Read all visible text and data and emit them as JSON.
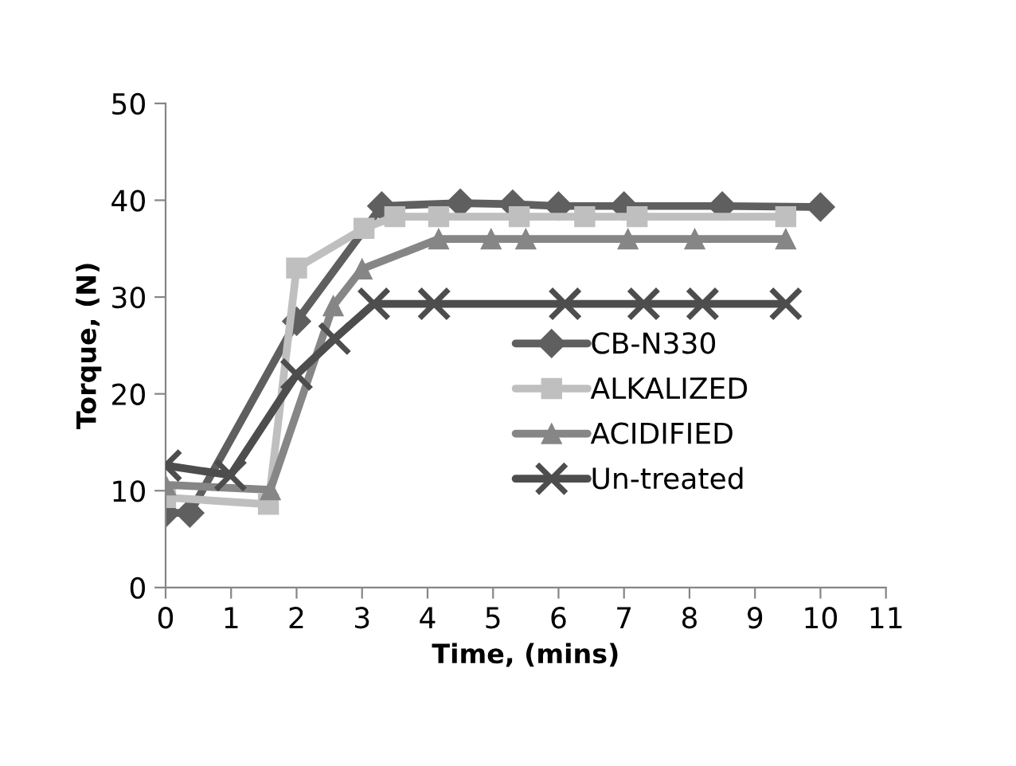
{
  "chart_data": {
    "type": "line",
    "xlabel": "Time, (mins)",
    "ylabel": "Torque, (N)",
    "xlim": [
      0,
      11
    ],
    "xticks": [
      0,
      1,
      2,
      3,
      4,
      5,
      6,
      7,
      8,
      9,
      10,
      11
    ],
    "ylim": [
      0,
      50
    ],
    "yticks": [
      0,
      10,
      20,
      30,
      40,
      50
    ],
    "grid": false,
    "legend": "right",
    "line_style": "solid",
    "series": [
      {
        "name": "CB-N330",
        "color": "#5f5f5f",
        "marker": "diamond",
        "x": [
          0,
          0.37,
          2.0,
          3.3,
          4.5,
          5.3,
          6.0,
          7.0,
          8.5,
          10.0
        ],
        "values": [
          7.7,
          7.7,
          27.5,
          39.4,
          39.7,
          39.6,
          39.4,
          39.4,
          39.4,
          39.3
        ]
      },
      {
        "name": "ALKALIZED",
        "color": "#bfbfbf",
        "marker": "square",
        "x": [
          0,
          1.57,
          2.0,
          3.03,
          3.5,
          4.17,
          5.4,
          6.4,
          7.2,
          9.47
        ],
        "values": [
          9.3,
          8.6,
          33.0,
          37.1,
          38.3,
          38.3,
          38.3,
          38.3,
          38.3,
          38.3
        ]
      },
      {
        "name": "ACIDIFIED",
        "color": "#868686",
        "marker": "triangle",
        "x": [
          0,
          1.6,
          2.56,
          3.0,
          4.17,
          4.97,
          5.5,
          7.06,
          8.08,
          9.47
        ],
        "values": [
          10.6,
          10.1,
          29.1,
          32.9,
          36.0,
          36.0,
          36.0,
          36.0,
          36.0,
          36.0
        ]
      },
      {
        "name": "Un-treated",
        "color": "#4d4d4d",
        "marker": "cross",
        "x": [
          0,
          0.99,
          2.0,
          2.58,
          3.18,
          4.1,
          6.1,
          7.3,
          8.2,
          9.47
        ],
        "values": [
          12.6,
          11.6,
          22.0,
          25.7,
          29.3,
          29.3,
          29.3,
          29.3,
          29.3,
          29.3
        ]
      }
    ]
  }
}
